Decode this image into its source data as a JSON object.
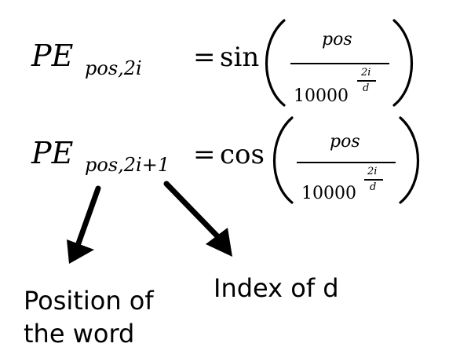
{
  "equations": [
    {
      "lhs_symbol": "PE",
      "lhs_subscript": "pos,2i",
      "equals": "=",
      "func": "sin",
      "numerator": "pos",
      "denominator_base": "10000",
      "exponent_num": "2i",
      "exponent_den": "d"
    },
    {
      "lhs_symbol": "PE",
      "lhs_subscript": "pos,2i+1",
      "equals": "=",
      "func": "cos",
      "numerator": "pos",
      "denominator_base": "10000",
      "exponent_num": "2i",
      "exponent_den": "d"
    }
  ],
  "annotations": {
    "position_line1": "Position of",
    "position_line2": "the word",
    "index": "Index of d"
  },
  "colors": {
    "ink": "#000000",
    "background": "#ffffff"
  }
}
